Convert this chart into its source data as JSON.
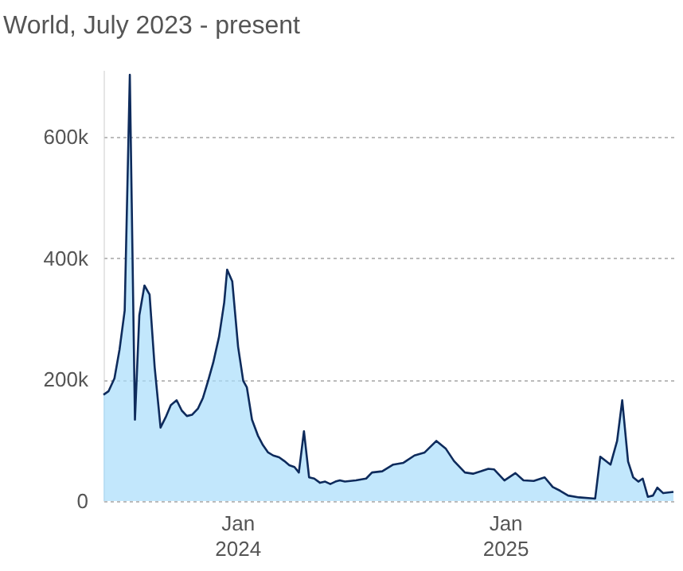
{
  "chart_data": {
    "type": "area",
    "title": "World, July 2023 - present",
    "x": [
      "2023-07-02",
      "2023-07-09",
      "2023-07-17",
      "2023-07-24",
      "2023-07-31",
      "2023-08-07",
      "2023-08-14",
      "2023-08-20",
      "2023-08-27",
      "2023-09-03",
      "2023-09-10",
      "2023-09-18",
      "2023-09-25",
      "2023-10-02",
      "2023-10-10",
      "2023-10-17",
      "2023-10-24",
      "2023-10-31",
      "2023-11-08",
      "2023-11-15",
      "2023-11-22",
      "2023-11-29",
      "2023-12-07",
      "2023-12-14",
      "2023-12-18",
      "2023-12-25",
      "2024-01-02",
      "2024-01-09",
      "2024-01-14",
      "2024-01-21",
      "2024-01-29",
      "2024-02-05",
      "2024-02-12",
      "2024-02-19",
      "2024-02-27",
      "2024-03-05",
      "2024-03-12",
      "2024-03-19",
      "2024-03-25",
      "2024-04-01",
      "2024-04-08",
      "2024-04-15",
      "2024-04-23",
      "2024-04-30",
      "2024-05-07",
      "2024-05-14",
      "2024-05-20",
      "2024-05-27",
      "2024-06-11",
      "2024-06-25",
      "2024-07-03",
      "2024-07-17",
      "2024-08-01",
      "2024-08-15",
      "2024-08-30",
      "2024-09-13",
      "2024-09-29",
      "2024-10-12",
      "2024-10-23",
      "2024-11-07",
      "2024-11-18",
      "2024-11-29",
      "2024-12-09",
      "2024-12-17",
      "2024-12-31",
      "2025-01-15",
      "2025-01-26",
      "2025-02-09",
      "2025-02-24",
      "2025-03-07",
      "2025-03-17",
      "2025-03-28",
      "2025-04-12",
      "2025-05-04",
      "2025-05-11",
      "2025-05-25",
      "2025-06-03",
      "2025-06-10",
      "2025-06-18",
      "2025-06-25",
      "2025-07-02",
      "2025-07-08",
      "2025-07-15",
      "2025-07-22",
      "2025-07-28",
      "2025-08-05",
      "2025-08-19"
    ],
    "series": [
      {
        "color": "#a8ddfb",
        "values": [
          175000,
          181000,
          202000,
          250000,
          314000,
          702000,
          134000,
          306000,
          355000,
          340000,
          220000,
          121000,
          138000,
          158000,
          166000,
          149000,
          140000,
          142000,
          152000,
          170000,
          198000,
          228000,
          271000,
          327000,
          381000,
          362000,
          254000,
          198000,
          187000,
          134000,
          108000,
          92000,
          80000,
          75000,
          72000,
          66000,
          59000,
          56000,
          47000,
          115000,
          39000,
          37000,
          30000,
          32000,
          28000,
          32000,
          34000,
          32000,
          34000,
          37000,
          47000,
          49000,
          60000,
          63000,
          75000,
          80000,
          99000,
          86000,
          66000,
          47000,
          45000,
          49000,
          53000,
          52000,
          34000,
          46000,
          34000,
          33000,
          39000,
          23000,
          17000,
          9000,
          6000,
          4000,
          73000,
          60000,
          99000,
          166000,
          65000,
          39000,
          32000,
          37000,
          7000,
          9000,
          22000,
          13000,
          15000
        ]
      }
    ],
    "xlim": [
      "2023-07-02",
      "2025-08-19"
    ],
    "xticks": [
      {
        "value": "2024-01-01",
        "label": "Jan 2024"
      },
      {
        "value": "2025-01-01",
        "label": "Jan 2025"
      }
    ],
    "ylim": [
      0,
      710000
    ],
    "yticks": [
      0,
      {
        "value": 200000,
        "label": "200k"
      },
      {
        "value": 400000,
        "label": "400k"
      },
      {
        "value": 600000,
        "label": "600k"
      }
    ],
    "grid": "y",
    "line_style": "solid",
    "marker": "none"
  }
}
